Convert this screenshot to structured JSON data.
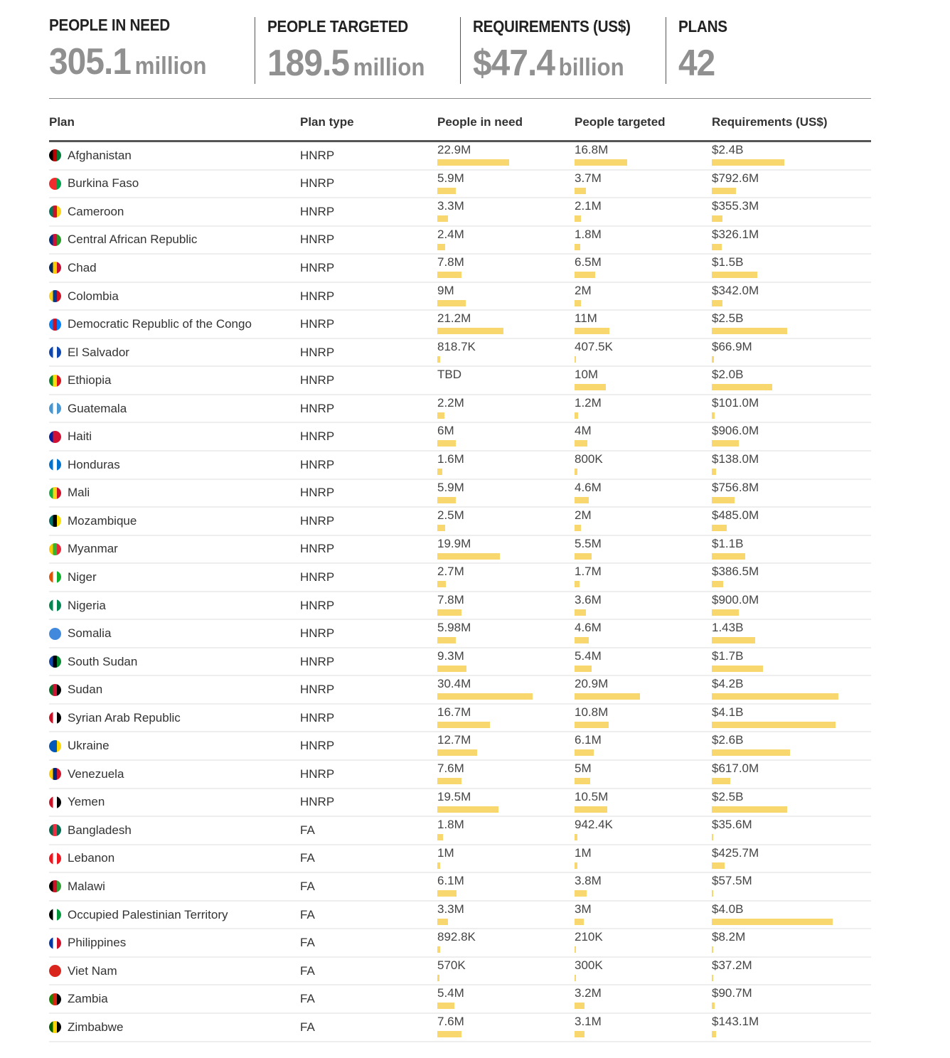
{
  "summary": [
    {
      "label": "PEOPLE IN NEED",
      "value": "305.1",
      "unit": "million"
    },
    {
      "label": "PEOPLE TARGETED",
      "value": "189.5",
      "unit": "million"
    },
    {
      "label": "REQUIREMENTS (US$)",
      "value": "$47.4",
      "unit": "billion"
    },
    {
      "label": "PLANS",
      "value": "42",
      "unit": ""
    }
  ],
  "table": {
    "headers": [
      "Plan",
      "Plan type",
      "People in need",
      "People targeted",
      "Requirements (US$)"
    ],
    "bar_color": "#f8d86e",
    "rows": [
      {
        "plan": "Afghanistan",
        "type": "HNRP",
        "pin": "22.9M",
        "pin_v": 22.9,
        "tgt": "16.8M",
        "tgt_v": 16.8,
        "req": "$2.4B",
        "req_v": 2.4,
        "flag": [
          "#000",
          "#be0000",
          "#007a36"
        ]
      },
      {
        "plan": "Burkina Faso",
        "type": "HNRP",
        "pin": "5.9M",
        "pin_v": 5.9,
        "tgt": "3.7M",
        "tgt_v": 3.7,
        "req": "$792.6M",
        "req_v": 0.7926,
        "flag": [
          "#ef2b2d",
          "#ef2b2d",
          "#009e49"
        ]
      },
      {
        "plan": "Cameroon",
        "type": "HNRP",
        "pin": "3.3M",
        "pin_v": 3.3,
        "tgt": "2.1M",
        "tgt_v": 2.1,
        "req": "$355.3M",
        "req_v": 0.3553,
        "flag": [
          "#007a5e",
          "#ce1126",
          "#fcd116"
        ]
      },
      {
        "plan": "Central African Republic",
        "type": "HNRP",
        "pin": "2.4M",
        "pin_v": 2.4,
        "tgt": "1.8M",
        "tgt_v": 1.8,
        "req": "$326.1M",
        "req_v": 0.3261,
        "flag": [
          "#003082",
          "#d21034",
          "#289728"
        ]
      },
      {
        "plan": "Chad",
        "type": "HNRP",
        "pin": "7.8M",
        "pin_v": 7.8,
        "tgt": "6.5M",
        "tgt_v": 6.5,
        "req": "$1.5B",
        "req_v": 1.5,
        "flag": [
          "#002664",
          "#fecb00",
          "#c60c30"
        ]
      },
      {
        "plan": "Colombia",
        "type": "HNRP",
        "pin": "9M",
        "pin_v": 9,
        "tgt": "2M",
        "tgt_v": 2,
        "req": "$342.0M",
        "req_v": 0.342,
        "flag": [
          "#fcd116",
          "#003893",
          "#ce1126"
        ]
      },
      {
        "plan": "Democratic Republic of the Congo",
        "type": "HNRP",
        "pin": "21.2M",
        "pin_v": 21.2,
        "tgt": "11M",
        "tgt_v": 11,
        "req": "$2.5B",
        "req_v": 2.5,
        "flag": [
          "#007fff",
          "#ce1021",
          "#007fff"
        ]
      },
      {
        "plan": "El Salvador",
        "type": "HNRP",
        "pin": "818.7K",
        "pin_v": 0.8187,
        "tgt": "407.5K",
        "tgt_v": 0.4075,
        "req": "$66.9M",
        "req_v": 0.0669,
        "flag": [
          "#0f47af",
          "#ffffff",
          "#0f47af"
        ]
      },
      {
        "plan": "Ethiopia",
        "type": "HNRP",
        "pin": "TBD",
        "pin_v": null,
        "tgt": "10M",
        "tgt_v": 10,
        "req": "$2.0B",
        "req_v": 2.0,
        "flag": [
          "#078930",
          "#fcdd09",
          "#da121a"
        ]
      },
      {
        "plan": "Guatemala",
        "type": "HNRP",
        "pin": "2.2M",
        "pin_v": 2.2,
        "tgt": "1.2M",
        "tgt_v": 1.2,
        "req": "$101.0M",
        "req_v": 0.101,
        "flag": [
          "#4997d0",
          "#ffffff",
          "#4997d0"
        ]
      },
      {
        "plan": "Haiti",
        "type": "HNRP",
        "pin": "6M",
        "pin_v": 6,
        "tgt": "4M",
        "tgt_v": 4,
        "req": "$906.0M",
        "req_v": 0.906,
        "flag": [
          "#00209f",
          "#d21034",
          "#d21034"
        ]
      },
      {
        "plan": "Honduras",
        "type": "HNRP",
        "pin": "1.6M",
        "pin_v": 1.6,
        "tgt": "800K",
        "tgt_v": 0.8,
        "req": "$138.0M",
        "req_v": 0.138,
        "flag": [
          "#0073cf",
          "#ffffff",
          "#0073cf"
        ]
      },
      {
        "plan": "Mali",
        "type": "HNRP",
        "pin": "5.9M",
        "pin_v": 5.9,
        "tgt": "4.6M",
        "tgt_v": 4.6,
        "req": "$756.8M",
        "req_v": 0.7568,
        "flag": [
          "#14b53a",
          "#fcd116",
          "#ce1126"
        ]
      },
      {
        "plan": "Mozambique",
        "type": "HNRP",
        "pin": "2.5M",
        "pin_v": 2.5,
        "tgt": "2M",
        "tgt_v": 2,
        "req": "$485.0M",
        "req_v": 0.485,
        "flag": [
          "#007168",
          "#000000",
          "#fce100"
        ]
      },
      {
        "plan": "Myanmar",
        "type": "HNRP",
        "pin": "19.9M",
        "pin_v": 19.9,
        "tgt": "5.5M",
        "tgt_v": 5.5,
        "req": "$1.1B",
        "req_v": 1.1,
        "flag": [
          "#fecb00",
          "#34b233",
          "#ea2839"
        ]
      },
      {
        "plan": "Niger",
        "type": "HNRP",
        "pin": "2.7M",
        "pin_v": 2.7,
        "tgt": "1.7M",
        "tgt_v": 1.7,
        "req": "$386.5M",
        "req_v": 0.3865,
        "flag": [
          "#e05206",
          "#ffffff",
          "#0db02b"
        ]
      },
      {
        "plan": "Nigeria",
        "type": "HNRP",
        "pin": "7.8M",
        "pin_v": 7.8,
        "tgt": "3.6M",
        "tgt_v": 3.6,
        "req": "$900.0M",
        "req_v": 0.9,
        "flag": [
          "#008751",
          "#ffffff",
          "#008751"
        ]
      },
      {
        "plan": "Somalia",
        "type": "HNRP",
        "pin": "5.98M",
        "pin_v": 5.98,
        "tgt": "4.6M",
        "tgt_v": 4.6,
        "req": "1.43B",
        "req_v": 1.43,
        "flag": [
          "#4189dd",
          "#4189dd",
          "#4189dd"
        ]
      },
      {
        "plan": "South Sudan",
        "type": "HNRP",
        "pin": "9.3M",
        "pin_v": 9.3,
        "tgt": "5.4M",
        "tgt_v": 5.4,
        "req": "$1.7B",
        "req_v": 1.7,
        "flag": [
          "#0f47af",
          "#000000",
          "#078930"
        ]
      },
      {
        "plan": "Sudan",
        "type": "HNRP",
        "pin": "30.4M",
        "pin_v": 30.4,
        "tgt": "20.9M",
        "tgt_v": 20.9,
        "req": "$4.2B",
        "req_v": 4.2,
        "flag": [
          "#007229",
          "#d21034",
          "#000000"
        ]
      },
      {
        "plan": "Syrian Arab Republic",
        "type": "HNRP",
        "pin": "16.7M",
        "pin_v": 16.7,
        "tgt": "10.8M",
        "tgt_v": 10.8,
        "req": "$4.1B",
        "req_v": 4.1,
        "flag": [
          "#ce1126",
          "#ffffff",
          "#000000"
        ]
      },
      {
        "plan": "Ukraine",
        "type": "HNRP",
        "pin": "12.7M",
        "pin_v": 12.7,
        "tgt": "6.1M",
        "tgt_v": 6.1,
        "req": "$2.6B",
        "req_v": 2.6,
        "flag": [
          "#0057b7",
          "#0057b7",
          "#ffd700"
        ]
      },
      {
        "plan": "Venezuela",
        "type": "HNRP",
        "pin": "7.6M",
        "pin_v": 7.6,
        "tgt": "5M",
        "tgt_v": 5,
        "req": "$617.0M",
        "req_v": 0.617,
        "flag": [
          "#ffcc00",
          "#00247d",
          "#cf142b"
        ]
      },
      {
        "plan": "Yemen",
        "type": "HNRP",
        "pin": "19.5M",
        "pin_v": 19.5,
        "tgt": "10.5M",
        "tgt_v": 10.5,
        "req": "$2.5B",
        "req_v": 2.5,
        "flag": [
          "#ce1126",
          "#ffffff",
          "#000000"
        ]
      },
      {
        "plan": "Bangladesh",
        "type": "FA",
        "pin": "1.8M",
        "pin_v": 1.8,
        "tgt": "942.4K",
        "tgt_v": 0.9424,
        "req": "$35.6M",
        "req_v": 0.0356,
        "flag": [
          "#006a4e",
          "#f42a41",
          "#006a4e"
        ]
      },
      {
        "plan": "Lebanon",
        "type": "FA",
        "pin": "1M",
        "pin_v": 1,
        "tgt": "1M",
        "tgt_v": 1,
        "req": "$425.7M",
        "req_v": 0.4257,
        "flag": [
          "#ee161f",
          "#ffffff",
          "#ee161f"
        ]
      },
      {
        "plan": "Malawi",
        "type": "FA",
        "pin": "6.1M",
        "pin_v": 6.1,
        "tgt": "3.8M",
        "tgt_v": 3.8,
        "req": "$57.5M",
        "req_v": 0.0575,
        "flag": [
          "#000000",
          "#ce1126",
          "#339e35"
        ]
      },
      {
        "plan": "Occupied Palestinian Territory",
        "type": "FA",
        "pin": "3.3M",
        "pin_v": 3.3,
        "tgt": "3M",
        "tgt_v": 3,
        "req": "$4.0B",
        "req_v": 4.0,
        "flag": [
          "#000000",
          "#ffffff",
          "#009639"
        ]
      },
      {
        "plan": "Philippines",
        "type": "FA",
        "pin": "892.8K",
        "pin_v": 0.8928,
        "tgt": "210K",
        "tgt_v": 0.21,
        "req": "$8.2M",
        "req_v": 0.0082,
        "flag": [
          "#0038a8",
          "#ffffff",
          "#ce1126"
        ]
      },
      {
        "plan": "Viet Nam",
        "type": "FA",
        "pin": "570K",
        "pin_v": 0.57,
        "tgt": "300K",
        "tgt_v": 0.3,
        "req": "$37.2M",
        "req_v": 0.0372,
        "flag": [
          "#da251d",
          "#da251d",
          "#da251d"
        ]
      },
      {
        "plan": "Zambia",
        "type": "FA",
        "pin": "5.4M",
        "pin_v": 5.4,
        "tgt": "3.2M",
        "tgt_v": 3.2,
        "req": "$90.7M",
        "req_v": 0.0907,
        "flag": [
          "#198a00",
          "#de2010",
          "#000000"
        ]
      },
      {
        "plan": "Zimbabwe",
        "type": "FA",
        "pin": "7.6M",
        "pin_v": 7.6,
        "tgt": "3.1M",
        "tgt_v": 3.1,
        "req": "$143.1M",
        "req_v": 0.1431,
        "flag": [
          "#006400",
          "#ffd200",
          "#000000"
        ]
      }
    ]
  }
}
